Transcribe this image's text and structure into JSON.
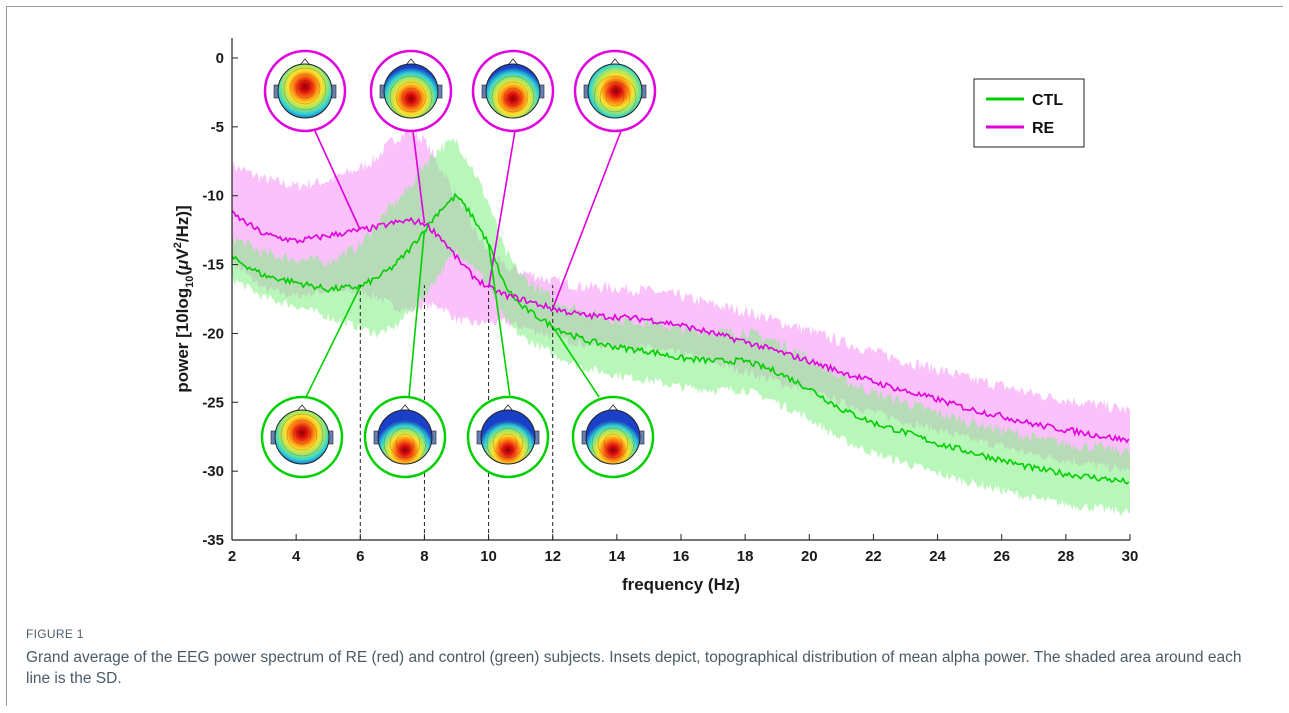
{
  "chart_data": {
    "type": "line",
    "xlabel": "frequency (Hz)",
    "ylabel_parts": [
      "power [10log",
      "10",
      "(",
      "μ",
      "V",
      "2",
      "/Hz)]"
    ],
    "xlim": [
      2,
      30
    ],
    "ylim": [
      -35,
      0
    ],
    "xticks": [
      2,
      4,
      6,
      8,
      10,
      12,
      14,
      16,
      18,
      20,
      22,
      24,
      26,
      28,
      30
    ],
    "yticks": [
      0,
      -5,
      -10,
      -15,
      -20,
      -25,
      -30,
      -35
    ],
    "grid": false,
    "legend_placement": "top-right",
    "band_markers": [
      6,
      8,
      10,
      12
    ],
    "series": [
      {
        "name": "CTL",
        "color": "#00d000",
        "shade_color": "#7fef7f",
        "x": [
          2,
          3,
          4,
          5,
          6,
          6.5,
          7,
          7.5,
          8,
          8.5,
          9,
          9.5,
          10,
          10.5,
          11,
          12,
          13,
          14,
          15,
          16,
          17,
          18,
          19,
          20,
          21,
          22,
          23,
          24,
          25,
          26,
          27,
          28,
          29,
          30
        ],
        "values": [
          -14.5,
          -15.8,
          -16.3,
          -16.8,
          -16.6,
          -16.0,
          -15.2,
          -14.0,
          -12.5,
          -11.0,
          -10.0,
          -11.5,
          -13.5,
          -16.5,
          -18.0,
          -19.5,
          -20.5,
          -21.0,
          -21.3,
          -21.8,
          -22.0,
          -22.0,
          -22.8,
          -24.0,
          -25.5,
          -26.5,
          -27.2,
          -28.0,
          -28.6,
          -29.2,
          -29.8,
          -30.2,
          -30.5,
          -30.8
        ],
        "sd": [
          1.5,
          1.6,
          1.7,
          2.0,
          3.0,
          4.0,
          4.5,
          4.5,
          4.8,
          4.5,
          4.0,
          3.5,
          3.0,
          2.5,
          2.2,
          2.0,
          2.0,
          2.0,
          2.1,
          2.1,
          2.1,
          2.1,
          2.2,
          2.2,
          2.2,
          2.2,
          2.2,
          2.2,
          2.2,
          2.2,
          2.2,
          2.2,
          2.2,
          2.2
        ]
      },
      {
        "name": "RE",
        "color": "#e000e0",
        "shade_color": "#f58ef5",
        "x": [
          2,
          3,
          4,
          5,
          6,
          6.5,
          7,
          7.5,
          8,
          8.5,
          9,
          9.5,
          10,
          10.5,
          11,
          12,
          13,
          14,
          15,
          16,
          17,
          18,
          19,
          20,
          21,
          22,
          23,
          24,
          25,
          26,
          27,
          28,
          29,
          30
        ],
        "values": [
          -11.3,
          -12.8,
          -13.3,
          -12.9,
          -12.5,
          -12.3,
          -12.0,
          -11.8,
          -12.0,
          -13.0,
          -14.5,
          -15.8,
          -16.7,
          -17.2,
          -17.5,
          -18.2,
          -18.7,
          -18.8,
          -19.0,
          -19.4,
          -20.0,
          -20.6,
          -21.3,
          -22.0,
          -22.8,
          -23.5,
          -24.2,
          -24.8,
          -25.5,
          -26.0,
          -26.6,
          -27.0,
          -27.4,
          -27.8
        ],
        "sd": [
          3.5,
          4.0,
          4.0,
          4.0,
          4.5,
          5.0,
          6.0,
          6.5,
          6.0,
          5.0,
          4.5,
          3.5,
          2.5,
          2.0,
          2.0,
          2.0,
          2.1,
          2.1,
          2.1,
          2.1,
          2.1,
          2.2,
          2.2,
          2.2,
          2.2,
          2.2,
          2.2,
          2.2,
          2.2,
          2.2,
          2.2,
          2.2,
          2.2,
          2.2
        ]
      }
    ],
    "topomaps": {
      "RE": [
        {
          "freq": 6,
          "pattern": "central"
        },
        {
          "freq": 8,
          "pattern": "posterior"
        },
        {
          "freq": 10,
          "pattern": "posterior"
        },
        {
          "freq": 12,
          "pattern": "central-posterior"
        }
      ],
      "CTL": [
        {
          "freq": 6,
          "pattern": "central"
        },
        {
          "freq": 8,
          "pattern": "occipital"
        },
        {
          "freq": 10,
          "pattern": "occipital"
        },
        {
          "freq": 12,
          "pattern": "occipital"
        }
      ]
    }
  },
  "caption": {
    "label": "FIGURE 1",
    "text": "Grand average of the EEG power spectrum of RE (red) and control (green) subjects. Insets depict, topographical distribution of mean alpha power. The shaded area around each line is the SD."
  }
}
